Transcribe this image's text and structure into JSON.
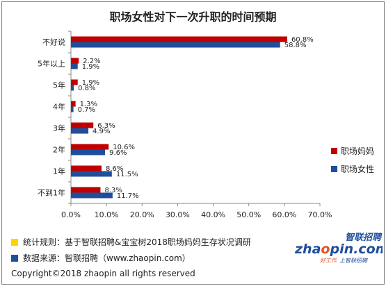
{
  "title": "职场女性对下一次升职的时间预期",
  "colors": {
    "series_a": "#c00000",
    "series_b": "#1f4e9b",
    "bullet_1": "#ffd200",
    "bullet_2": "#1f4e9b"
  },
  "chart_data": {
    "type": "bar",
    "orientation": "horizontal",
    "title": "职场女性对下一次升职的时间预期",
    "categories": [
      "不好说",
      "5年以上",
      "5年",
      "4年",
      "3年",
      "2年",
      "1年",
      "不到1年"
    ],
    "series": [
      {
        "name": "职场妈妈",
        "color": "#c00000",
        "values": [
          60.8,
          2.2,
          1.9,
          1.3,
          6.3,
          10.6,
          8.6,
          8.3
        ]
      },
      {
        "name": "职场女性",
        "color": "#1f4e9b",
        "values": [
          58.8,
          1.9,
          0.8,
          0.7,
          4.9,
          9.6,
          11.5,
          11.7
        ]
      }
    ],
    "xlim": [
      0,
      70
    ],
    "x_ticks": [
      "0.0%",
      "10.0%",
      "20.0%",
      "30.0%",
      "40.0%",
      "50.0%",
      "60.0%",
      "70.0%"
    ],
    "value_labels": [
      [
        "60.8%",
        "2.2%",
        "1.9%",
        "1.3%",
        "6.3%",
        "10.6%",
        "8.6%",
        "8.3%"
      ],
      [
        "58.8%",
        "1.9%",
        "0.8%",
        "0.7%",
        "4.9%",
        "9.6%",
        "11.5%",
        "11.7%"
      ]
    ],
    "grid": false,
    "legend_position": "right"
  },
  "legend": [
    {
      "label": "职场妈妈"
    },
    {
      "label": "职场女性"
    }
  ],
  "footer": {
    "rule": "统计规则：基于智联招聘&宝宝树2018职场妈妈生存状况调研",
    "source": "数据来源：智联招聘（www.zhaopin.com）",
    "copyright": "Copyright©2018 zhaopin all rights reserved"
  },
  "brand": {
    "name": "智联招聘",
    "domain": "zhaopin.com",
    "slogan": "好工作  上智联招聘"
  }
}
